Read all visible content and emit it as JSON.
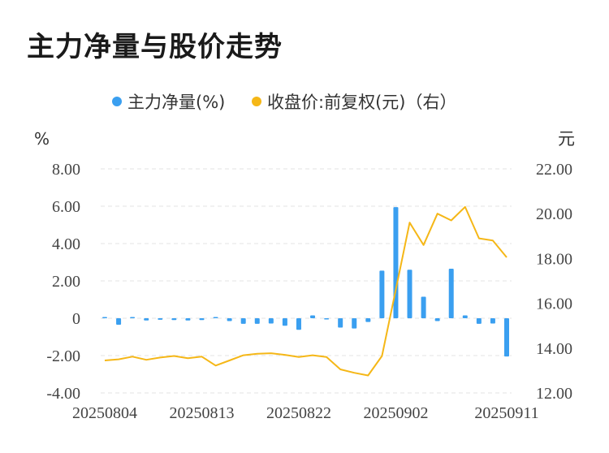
{
  "page": {
    "title": "主力净量与股价走势"
  },
  "chart_data": {
    "type": "bar+line",
    "legend": [
      {
        "label": "主力净量(%)",
        "color": "#3a9ff0"
      },
      {
        "label": "收盘价:前复权(元)（右）",
        "color": "#f5b717"
      }
    ],
    "left_axis": {
      "unit": "%",
      "ylim": [
        -4,
        8
      ],
      "ticks": [
        "8.00",
        "6.00",
        "4.00",
        "2.00",
        "0",
        "-2.00",
        "-4.00"
      ],
      "tick_values": [
        8,
        6,
        4,
        2,
        0,
        -2,
        -4
      ]
    },
    "right_axis": {
      "unit": "元",
      "ylim": [
        12,
        22
      ],
      "ticks": [
        "22.00",
        "20.00",
        "18.00",
        "16.00",
        "14.00",
        "12.00"
      ],
      "tick_values": [
        22,
        20,
        18,
        16,
        14,
        12
      ]
    },
    "x_ticks": [
      {
        "label": "20250804",
        "index": 0
      },
      {
        "label": "20250813",
        "index": 7
      },
      {
        "label": "20250822",
        "index": 14
      },
      {
        "label": "20250902",
        "index": 21
      },
      {
        "label": "20250911",
        "index": 29
      }
    ],
    "n_points": 30,
    "series": [
      {
        "name": "主力净量(%)",
        "type": "bar",
        "axis": "left",
        "values": [
          0.02,
          -0.35,
          0.05,
          -0.12,
          -0.08,
          -0.1,
          -0.12,
          -0.1,
          0.0,
          -0.15,
          -0.3,
          -0.3,
          -0.28,
          -0.4,
          -0.62,
          0.15,
          -0.02,
          -0.5,
          -0.55,
          -0.2,
          2.55,
          5.95,
          2.6,
          1.15,
          -0.15,
          2.65,
          0.15,
          -0.3,
          -0.28,
          -2.05
        ]
      },
      {
        "name": "收盘价:前复权(元)（右）",
        "type": "line",
        "axis": "right",
        "values": [
          13.45,
          13.5,
          13.62,
          13.48,
          13.58,
          13.65,
          13.55,
          13.62,
          13.22,
          13.45,
          13.68,
          13.75,
          13.77,
          13.7,
          13.6,
          13.68,
          13.6,
          13.05,
          12.9,
          12.78,
          13.65,
          16.6,
          19.6,
          18.6,
          20.0,
          19.7,
          20.3,
          18.9,
          18.8,
          18.05
        ]
      }
    ]
  }
}
